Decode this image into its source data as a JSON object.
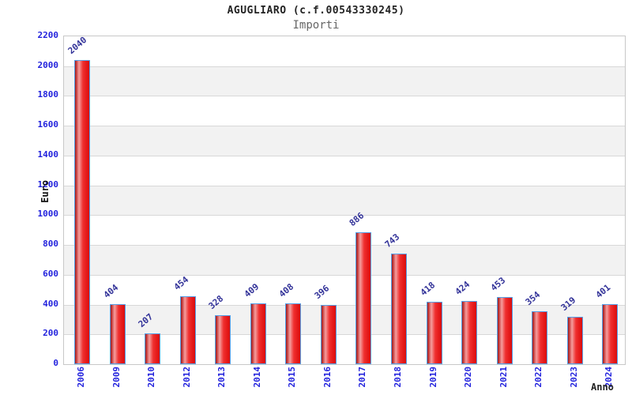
{
  "header": {
    "title": "AGUGLIARO (c.f.00543330245)",
    "subtitle": "Importi"
  },
  "chart_data": {
    "type": "bar",
    "title": "AGUGLIARO (c.f.00543330245)",
    "subtitle": "Importi",
    "xlabel": "Anno",
    "ylabel": "Euro",
    "categories": [
      "2006",
      "2009",
      "2010",
      "2012",
      "2013",
      "2014",
      "2015",
      "2016",
      "2017",
      "2018",
      "2019",
      "2020",
      "2021",
      "2022",
      "2023",
      "2024"
    ],
    "values": [
      2040,
      404,
      207,
      454,
      328,
      409,
      408,
      396,
      886,
      743,
      418,
      424,
      453,
      354,
      319,
      401
    ],
    "ylim": [
      0,
      2200
    ],
    "ytick_step": 200,
    "ytick_labels": [
      "0",
      "200",
      "400",
      "600",
      "800",
      "1000",
      "1200",
      "1400",
      "1600",
      "1800",
      "2000",
      "2200"
    ],
    "grid": "horizontal alternating bands, gray every other 200-unit stripe",
    "legend": "none",
    "colors": {
      "bar_border": "#55a0e8",
      "bar_fill_dark": "#9b1c1c",
      "bar_fill_highlight": "#f59e9e",
      "bar_fill_main": "#e31616",
      "tick_label": "#2222dd",
      "value_label": "#333399",
      "band_gray": "#f2f2f2",
      "gridline": "#d8d8d8",
      "plot_border": "#c8c8c8",
      "title": "#222222",
      "subtitle": "#666666"
    }
  }
}
